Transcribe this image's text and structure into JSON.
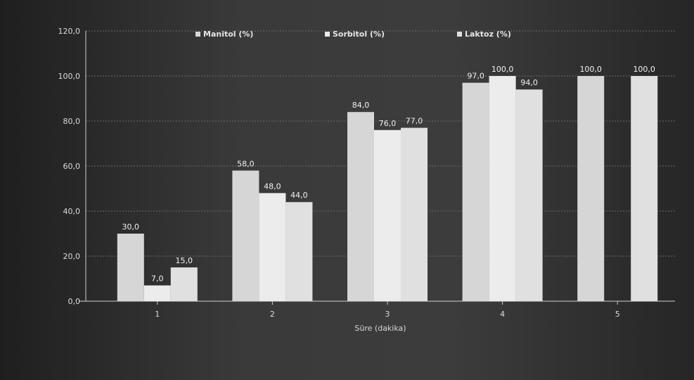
{
  "chart_data": {
    "type": "bar",
    "title": "",
    "xlabel": "Süre (dakika)",
    "ylabel": "",
    "categories": [
      "1",
      "2",
      "3",
      "4",
      "5"
    ],
    "ylim": [
      0,
      120
    ],
    "yticks": [
      "0,0",
      "20,0",
      "40,0",
      "60,0",
      "80,0",
      "100,0",
      "120,0"
    ],
    "series": [
      {
        "name": "Manitol (%)",
        "values": [
          30,
          58,
          84,
          97,
          100
        ]
      },
      {
        "name": "Sorbitol (%)",
        "values": [
          7,
          48,
          76,
          100,
          null
        ]
      },
      {
        "name": "Laktoz (%)",
        "values": [
          15,
          44,
          77,
          94,
          100
        ]
      }
    ],
    "data_labels": [
      [
        "30,0",
        "58,0",
        "84,0",
        "97,0",
        "100,0"
      ],
      [
        "7,0",
        "48,0",
        "76,0",
        "100,0",
        ""
      ],
      [
        "15,0",
        "44,0",
        "77,0",
        "94,0",
        "100,0"
      ]
    ],
    "colors": [
      "#d6d6d6",
      "#ececec",
      "#e0e0e0"
    ],
    "grid": true,
    "legend_position": "top"
  }
}
